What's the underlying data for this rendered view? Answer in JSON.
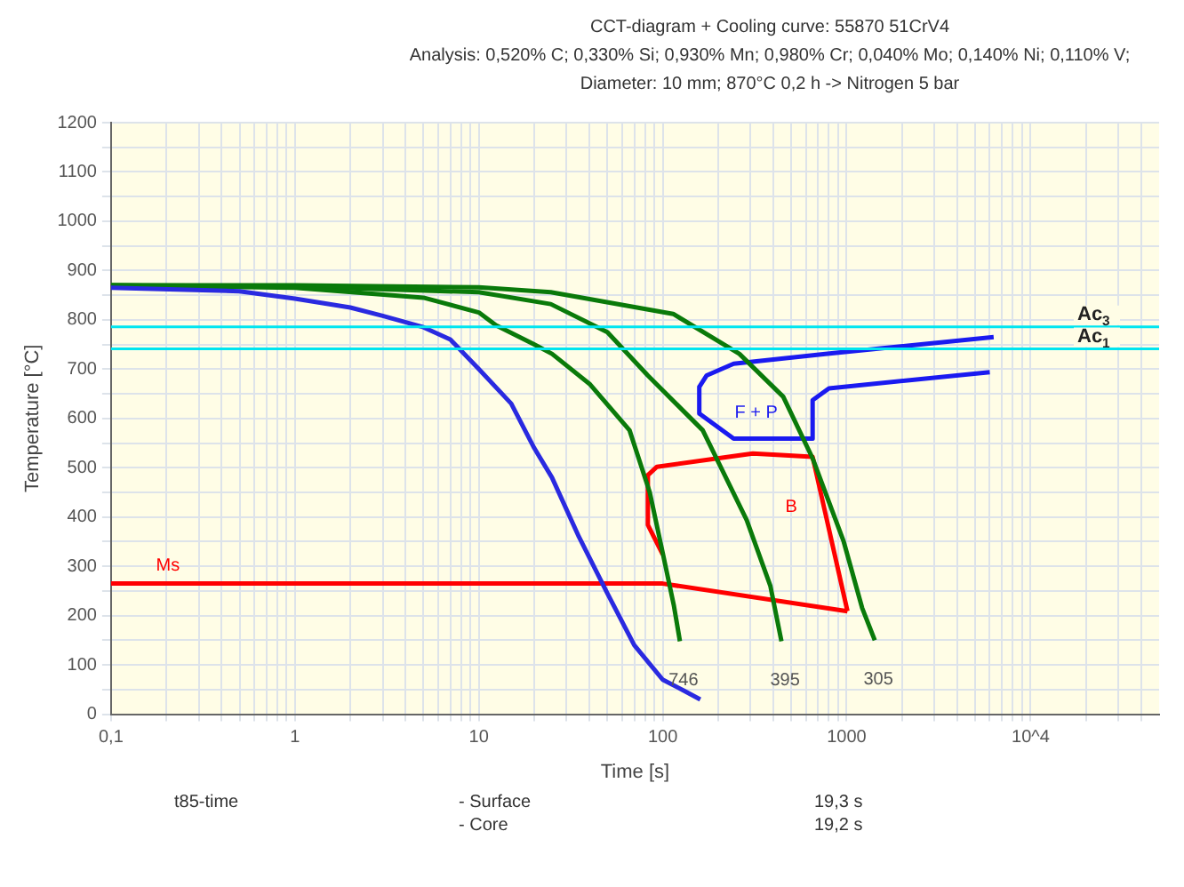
{
  "chart_data": {
    "type": "line",
    "title": "CCT-diagram + Cooling curve: 55870 51CrV4",
    "subtitle": "Analysis: 0,520% C; 0,330% Si; 0,930% Mn; 0,980% Cr; 0,040% Mo; 0,140% Ni; 0,110% V;\nDiameter: 10 mm; 870°C 0,2 h -> Nitrogen 5 bar",
    "xlabel": "Time [s]",
    "ylabel": "Temperature [°C]",
    "log": "x",
    "xlim": [
      0.1,
      50000
    ],
    "ylim": [
      0,
      1200
    ],
    "xticks": [
      {
        "value": 0.1,
        "label": "0,1"
      },
      {
        "value": 0.2,
        "label": null
      },
      {
        "value": 0.3,
        "label": null
      },
      {
        "value": 0.4,
        "label": null
      },
      {
        "value": 0.5,
        "label": null
      },
      {
        "value": 0.6,
        "label": null
      },
      {
        "value": 0.7,
        "label": null
      },
      {
        "value": 0.8,
        "label": null
      },
      {
        "value": 0.9,
        "label": null
      },
      1,
      {
        "value": 2,
        "label": null
      },
      {
        "value": 3,
        "label": null
      },
      {
        "value": 4,
        "label": null
      },
      {
        "value": 5,
        "label": null
      },
      {
        "value": 6,
        "label": null
      },
      {
        "value": 7,
        "label": null
      },
      {
        "value": 8,
        "label": null
      },
      {
        "value": 9,
        "label": null
      },
      10,
      {
        "value": 20,
        "label": null
      },
      {
        "value": 30,
        "label": null
      },
      {
        "value": 40,
        "label": null
      },
      {
        "value": 50,
        "label": null
      },
      {
        "value": 60,
        "label": null
      },
      {
        "value": 70,
        "label": null
      },
      {
        "value": 80,
        "label": null
      },
      {
        "value": 90,
        "label": null
      },
      100,
      {
        "value": 200,
        "label": null
      },
      {
        "value": 300,
        "label": null
      },
      {
        "value": 400,
        "label": null
      },
      {
        "value": 500,
        "label": null
      },
      {
        "value": 600,
        "label": null
      },
      {
        "value": 700,
        "label": null
      },
      {
        "value": 800,
        "label": null
      },
      {
        "value": 900,
        "label": null
      },
      1000,
      {
        "value": 2000,
        "label": null
      },
      {
        "value": 3000,
        "label": null
      },
      {
        "value": 4000,
        "label": null
      },
      {
        "value": 5000,
        "label": null
      },
      {
        "value": 6000,
        "label": null
      },
      {
        "value": 7000,
        "label": null
      },
      {
        "value": 8000,
        "label": null
      },
      {
        "value": 9000,
        "label": null
      },
      {
        "value": 10000,
        "label": "10^4"
      },
      {
        "value": 20000,
        "label": null
      },
      {
        "value": 30000,
        "label": null
      },
      {
        "value": 40000,
        "label": null
      }
    ],
    "yticks": [
      0,
      {
        "value": 50,
        "label": null
      },
      100,
      {
        "value": 150,
        "label": null
      },
      200,
      {
        "value": 250,
        "label": null
      },
      300,
      {
        "value": 350,
        "label": null
      },
      400,
      {
        "value": 450,
        "label": null
      },
      500,
      {
        "value": 550,
        "label": null
      },
      600,
      {
        "value": 650,
        "label": null
      },
      700,
      {
        "value": 750,
        "label": null
      },
      800,
      {
        "value": 850,
        "label": null
      },
      900,
      {
        "value": 950,
        "label": null
      },
      1000,
      {
        "value": 1050,
        "label": null
      },
      1100,
      {
        "value": 1150,
        "label": null
      },
      1200
    ],
    "grid": true,
    "legend": false,
    "series": [
      {
        "color": "#2a2ae0",
        "x": [
          0.1,
          0.5,
          1,
          2,
          3,
          5,
          7,
          10,
          15,
          20,
          25,
          35,
          50,
          70,
          100,
          130,
          160
        ],
        "values": [
          865,
          858,
          843,
          825,
          808,
          785,
          760,
          700,
          630,
          540,
          480,
          360,
          245,
          140,
          70,
          48,
          30
        ]
      },
      {
        "name": "746",
        "color": "#0a7a0a",
        "x": [
          0.1,
          1,
          5,
          10,
          12.4,
          20,
          25,
          40,
          66,
          85,
          100,
          115,
          124
        ],
        "values": [
          870,
          865,
          845,
          815,
          789,
          750,
          731,
          670,
          576,
          450,
          327,
          220,
          148
        ]
      },
      {
        "name": "395",
        "color": "#0a7a0a",
        "x": [
          0.1,
          1,
          10,
          24.6,
          50,
          83,
          165,
          286,
          385,
          442
        ],
        "values": [
          870,
          868,
          856,
          832,
          775,
          687,
          576,
          394,
          260,
          148
        ]
      },
      {
        "name": "305",
        "color": "#0a7a0a",
        "x": [
          0.1,
          1,
          10,
          24.6,
          114,
          261,
          452,
          653,
          964,
          1213,
          1422
        ],
        "values": [
          870,
          870,
          866,
          856,
          812,
          731,
          644,
          519,
          350,
          216,
          150
        ]
      },
      {
        "name": "Ms",
        "color": "#ff0000",
        "x": [
          0.1,
          100,
          1010
        ],
        "values": [
          265,
          265,
          209
        ]
      },
      {
        "name": "B",
        "color": "#ff0000",
        "x": [
          1010,
          653,
          309,
          93,
          83,
          83,
          100
        ],
        "values": [
          209,
          522,
          529,
          502,
          485,
          384,
          324
        ]
      },
      {
        "name": "F + P",
        "color": "#1a1af0",
        "x": [
          6300,
          765,
          243,
          173,
          158,
          158,
          243,
          653,
          653,
          801,
          6000
        ],
        "values": [
          765,
          731,
          711,
          687,
          664,
          610,
          559,
          559,
          637,
          661,
          694
        ]
      }
    ],
    "ref_lines": [
      {
        "axis": "y",
        "value": 786,
        "label": "Ac$_{3}$",
        "color": "#00e5f0"
      },
      {
        "axis": "y",
        "value": 741,
        "label": "Ac$_{1}$",
        "color": "#00e5f0"
      }
    ],
    "annotations": [
      "t85-time",
      "- Surface",
      "19,3 s",
      "- Core",
      "19,2 s"
    ]
  }
}
